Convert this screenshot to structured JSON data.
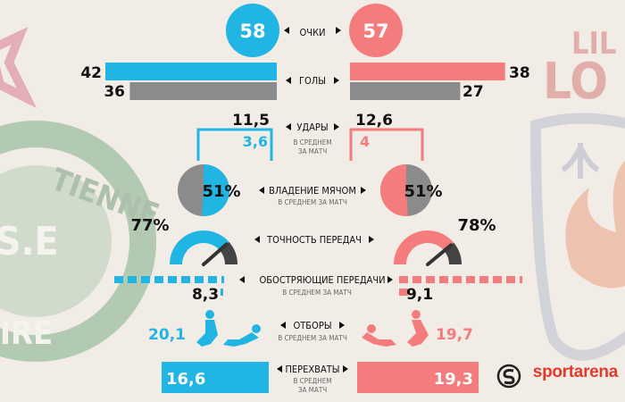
{
  "colors": {
    "left": "#21b5e3",
    "right": "#f47c7c",
    "gray": "#8b8b8b",
    "text": "#111111",
    "bg": "#f1ede6"
  },
  "brand": {
    "name": "sportarena",
    "color": "#e23b2c"
  },
  "badges": {
    "left_lettering": [
      "TIENNE",
      "S.E",
      "IRE"
    ],
    "right_lettering": [
      "LIL",
      "LO"
    ]
  },
  "chart_data": {
    "type": "table",
    "teams": [],
    "legend": "none",
    "grid": false,
    "rows": [
      {
        "key": "points",
        "label": "ОЧКИ",
        "sublabel": "",
        "left": "58",
        "right": "57"
      },
      {
        "key": "goals",
        "label": "ГОЛЫ",
        "sublabel": "",
        "left_scored": 42,
        "right_scored": 38,
        "left_conceded": 36,
        "right_conceded": 27,
        "max": 42
      },
      {
        "key": "shots",
        "label": "УДАРЫ",
        "sublabel": "В СРЕДНЕМ ЗА МАТЧ",
        "left_total": "11,5",
        "right_total": "12,6",
        "left_on_target": "3,6",
        "right_on_target": "4"
      },
      {
        "key": "possession",
        "label": "ВЛАДЕНИЕ МЯЧОМ",
        "sublabel": "В СРЕДНЕМ ЗА МАТЧ",
        "left": "51%",
        "right": "51%",
        "left_value": 51,
        "right_value": 51
      },
      {
        "key": "pass_accuracy",
        "label": "ТОЧНОСТЬ ПЕРЕДАЧ",
        "sublabel": "",
        "left": "77%",
        "right": "78%",
        "left_value": 77,
        "right_value": 78
      },
      {
        "key": "key_passes",
        "label": "ОБОСТРЯЮЩИЕ ПЕРЕДАЧИ",
        "sublabel": "В СРЕДНЕМ ЗА МАТЧ",
        "left": "8,3",
        "right": "9,1",
        "left_value": 8.3,
        "right_value": 9.1
      },
      {
        "key": "tackles",
        "label": "ОТБОРЫ",
        "sublabel": "В СРЕДНЕМ ЗА МАТЧ",
        "left": "20,1",
        "right": "19,7"
      },
      {
        "key": "interceptions",
        "label": "ПЕРЕХВАТЫ",
        "sublabel": "В СРЕДНЕМ ЗА МАТЧ",
        "left": "16,6",
        "right": "19,3"
      }
    ]
  }
}
